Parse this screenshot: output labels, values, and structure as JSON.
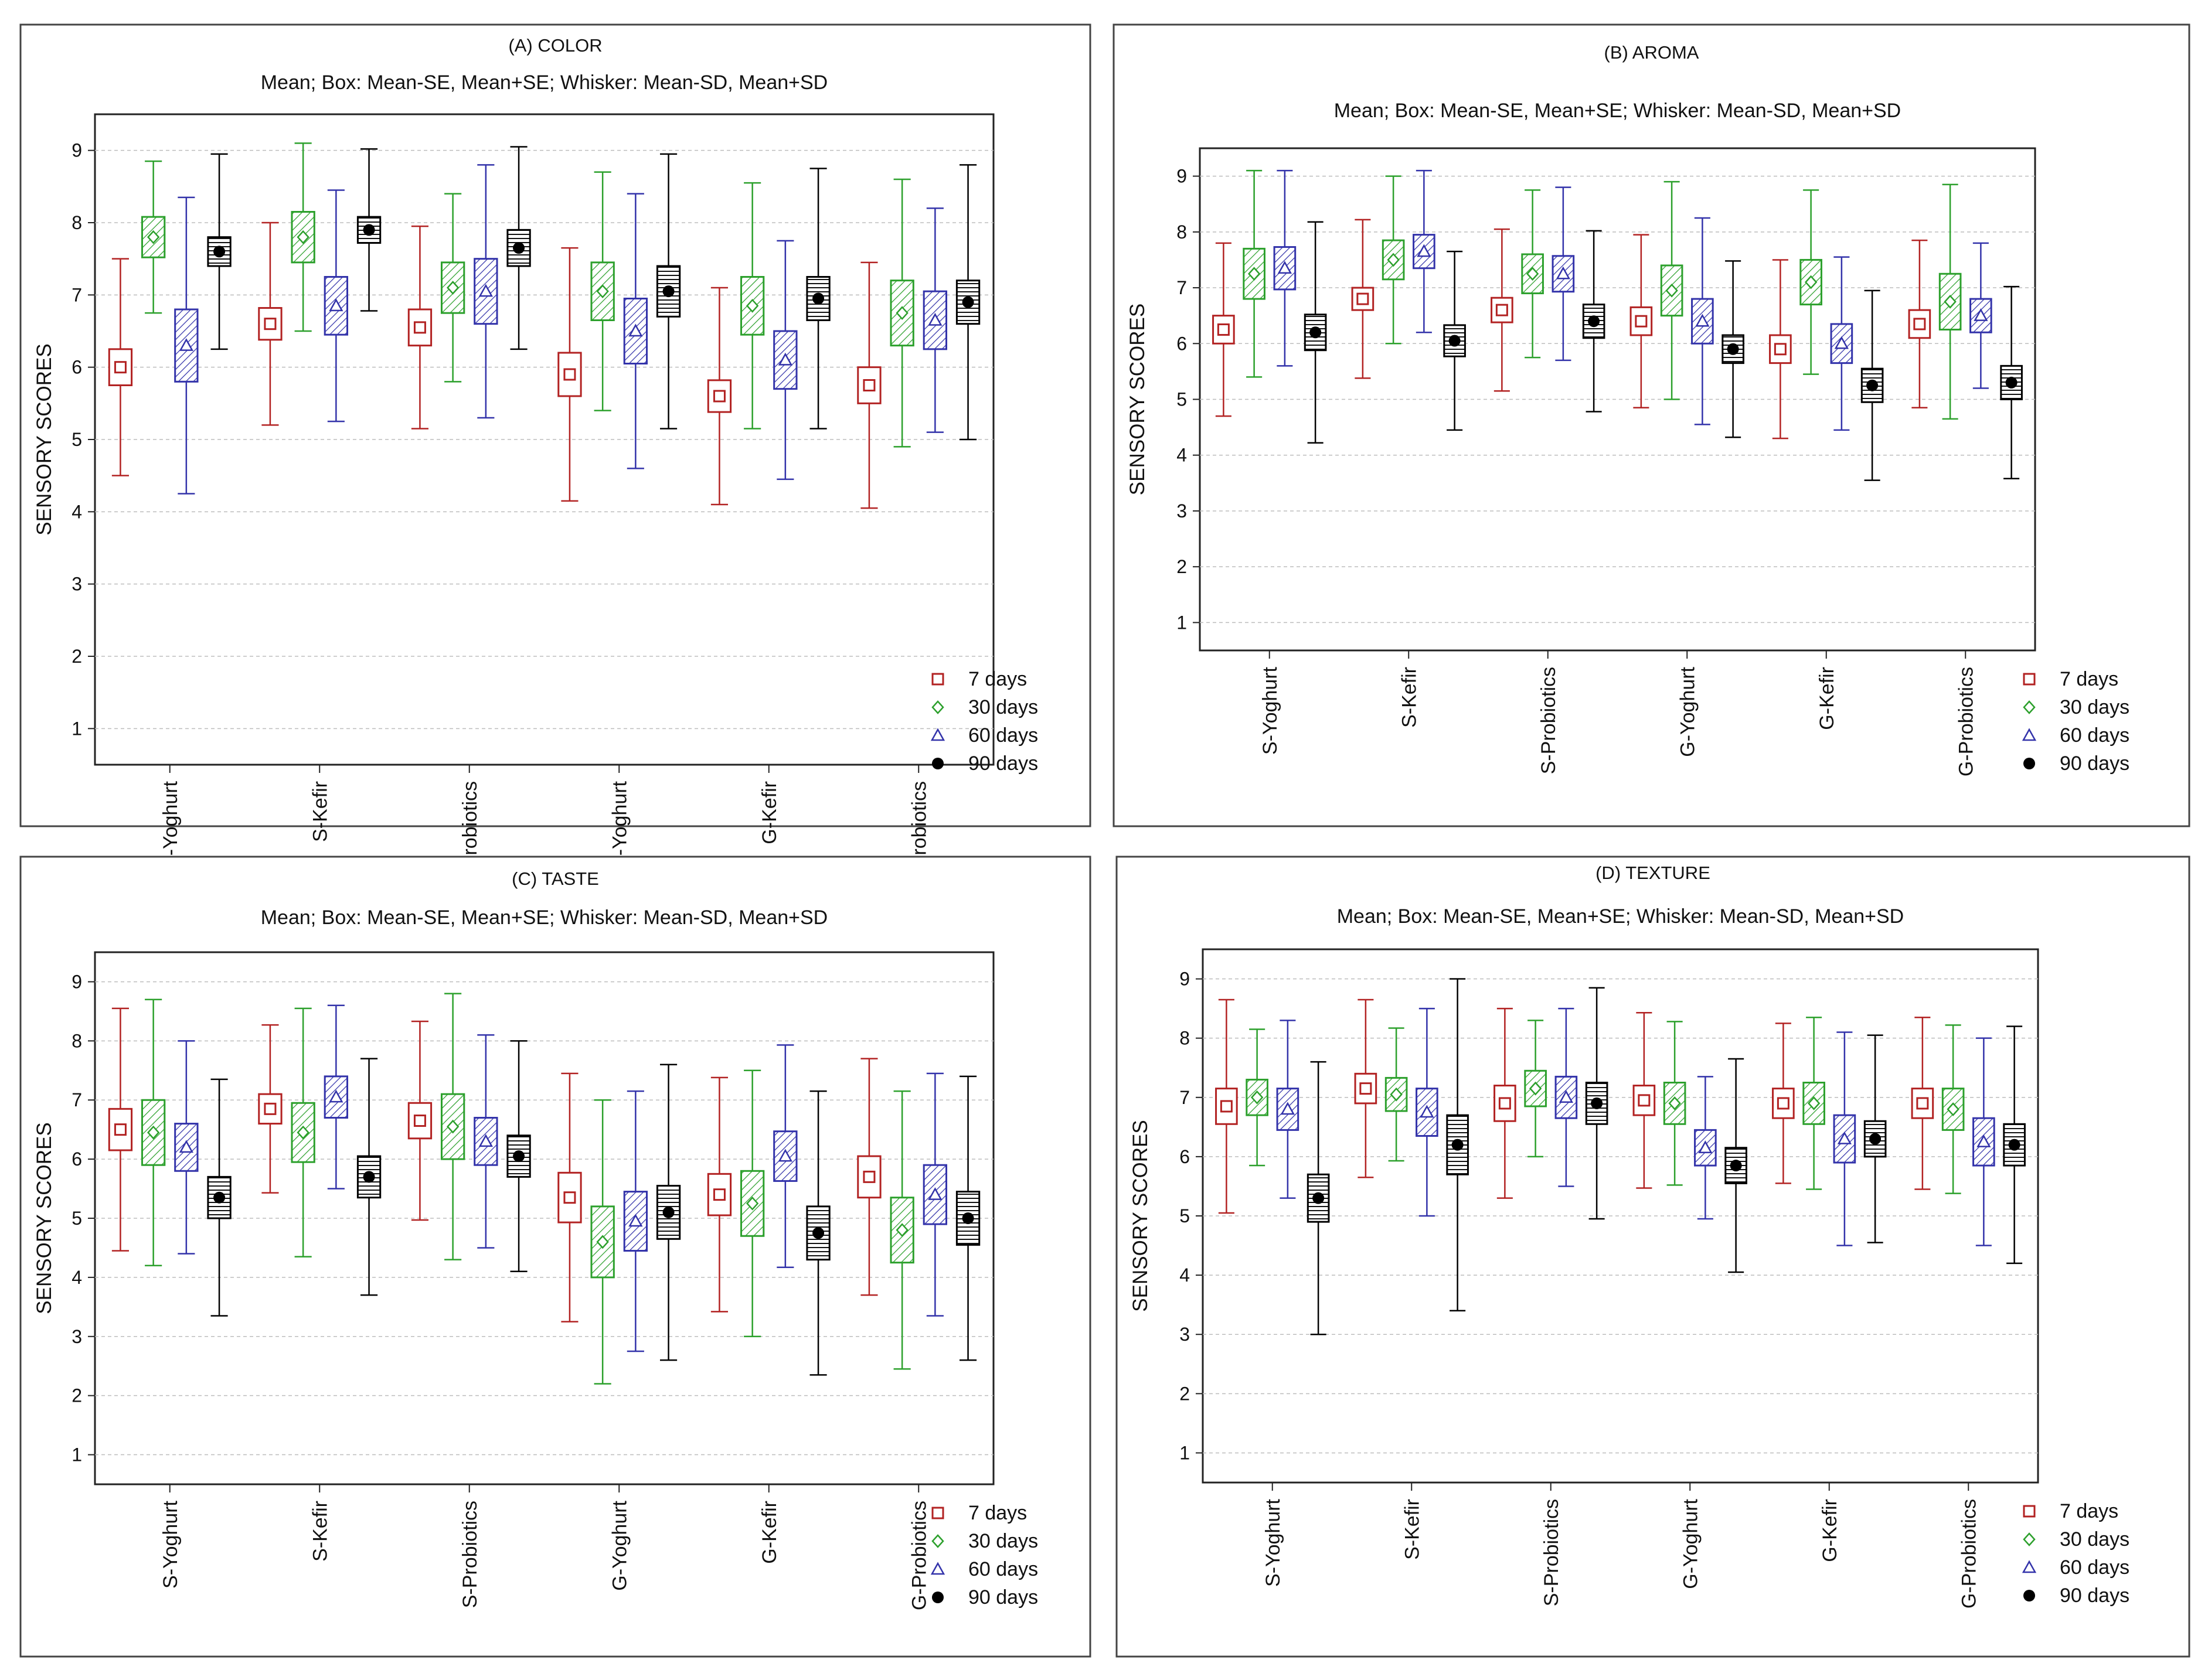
{
  "series_styles": [
    {
      "name": "7 days",
      "color": "#b22222",
      "marker": "square",
      "pattern": "none"
    },
    {
      "name": "30 days",
      "color": "#2ca02c",
      "marker": "diamond",
      "pattern": "diag"
    },
    {
      "name": "60 days",
      "color": "#3333aa",
      "marker": "triangle",
      "pattern": "diag2"
    },
    {
      "name": "90 days",
      "color": "#000000",
      "marker": "circle",
      "pattern": "horiz"
    }
  ],
  "chart_data": [
    {
      "type": "boxplot",
      "title": "(A) COLOR",
      "subtitle": "Mean;  Box: Mean-SE, Mean+SE;  Whisker: Mean-SD, Mean+SD",
      "ylabel": "SENSORY SCORES",
      "ylim": [
        0.5,
        9.5
      ],
      "yticks": [
        1,
        2,
        3,
        4,
        5,
        6,
        7,
        8,
        9
      ],
      "categories": [
        "S-Yoghurt",
        "S-Kefir",
        "S-Probiotics",
        "G-Yoghurt",
        "G-Kefir",
        "G-Probiotics"
      ],
      "series": [
        {
          "name": "7 days",
          "mean": [
            6.0,
            6.6,
            6.55,
            5.9,
            5.6,
            5.75
          ],
          "se": [
            0.25,
            0.22,
            0.25,
            0.3,
            0.22,
            0.25
          ],
          "sd": [
            1.5,
            1.4,
            1.4,
            1.75,
            1.5,
            1.7
          ]
        },
        {
          "name": "30 days",
          "mean": [
            7.8,
            7.8,
            7.1,
            7.05,
            6.85,
            6.75
          ],
          "se": [
            0.28,
            0.35,
            0.35,
            0.4,
            0.4,
            0.45
          ],
          "sd": [
            1.05,
            1.3,
            1.3,
            1.65,
            1.7,
            1.85
          ]
        },
        {
          "name": "60 days",
          "mean": [
            6.3,
            6.85,
            7.05,
            6.5,
            6.1,
            6.65
          ],
          "se": [
            0.5,
            0.4,
            0.45,
            0.45,
            0.4,
            0.4
          ],
          "sd": [
            2.05,
            1.6,
            1.75,
            1.9,
            1.65,
            1.55
          ]
        },
        {
          "name": "90 days",
          "mean": [
            7.6,
            7.9,
            7.65,
            7.05,
            6.95,
            6.9
          ],
          "se": [
            0.2,
            0.18,
            0.25,
            0.35,
            0.3,
            0.3
          ],
          "sd": [
            1.35,
            1.12,
            1.4,
            1.9,
            1.8,
            1.9
          ]
        }
      ],
      "legend": [
        "7 days",
        "30 days",
        "60 days",
        "90 days"
      ]
    },
    {
      "type": "boxplot",
      "title": "(B) AROMA",
      "subtitle": "Mean;  Box: Mean-SE, Mean+SE;  Whisker: Mean-SD, Mean+SD",
      "ylabel": "SENSORY SCORES",
      "ylim": [
        0.5,
        9.5
      ],
      "yticks": [
        1,
        2,
        3,
        4,
        5,
        6,
        7,
        8,
        9
      ],
      "categories": [
        "S-Yoghurt",
        "S-Kefir",
        "S-Probiotics",
        "G-Yoghurt",
        "G-Kefir",
        "G-Probiotics"
      ],
      "series": [
        {
          "name": "7 days",
          "mean": [
            6.25,
            6.8,
            6.6,
            6.4,
            5.9,
            6.35
          ],
          "se": [
            0.25,
            0.2,
            0.22,
            0.25,
            0.25,
            0.25
          ],
          "sd": [
            1.55,
            1.42,
            1.45,
            1.55,
            1.6,
            1.5
          ]
        },
        {
          "name": "30 days",
          "mean": [
            7.25,
            7.5,
            7.25,
            6.95,
            7.1,
            6.75
          ],
          "se": [
            0.45,
            0.35,
            0.35,
            0.45,
            0.4,
            0.5
          ],
          "sd": [
            1.85,
            1.5,
            1.5,
            1.95,
            1.65,
            2.1
          ]
        },
        {
          "name": "60 days",
          "mean": [
            7.35,
            7.65,
            7.25,
            6.4,
            6.0,
            6.5
          ],
          "se": [
            0.38,
            0.3,
            0.32,
            0.4,
            0.35,
            0.3
          ],
          "sd": [
            1.75,
            1.45,
            1.55,
            1.85,
            1.55,
            1.3
          ]
        },
        {
          "name": "90 days",
          "mean": [
            6.2,
            6.05,
            6.4,
            5.9,
            5.25,
            5.3
          ],
          "se": [
            0.32,
            0.28,
            0.3,
            0.25,
            0.3,
            0.3
          ],
          "sd": [
            1.98,
            1.6,
            1.62,
            1.58,
            1.7,
            1.72
          ]
        }
      ],
      "legend": [
        "7 days",
        "30 days",
        "60 days",
        "90 days"
      ]
    },
    {
      "type": "boxplot",
      "title": "(C) TASTE",
      "subtitle": "Mean;  Box: Mean-SE, Mean+SE;  Whisker: Mean-SD, Mean+SD",
      "ylabel": "SENSORY SCORES",
      "ylim": [
        0.5,
        9.5
      ],
      "yticks": [
        1,
        2,
        3,
        4,
        5,
        6,
        7,
        8,
        9
      ],
      "categories": [
        "S-Yoghurt",
        "S-Kefir",
        "S-Probiotics",
        "G-Yoghurt",
        "G-Kefir",
        "G-Probiotics"
      ],
      "series": [
        {
          "name": "7 days",
          "mean": [
            6.5,
            6.85,
            6.65,
            5.35,
            5.4,
            5.7
          ],
          "se": [
            0.35,
            0.25,
            0.3,
            0.42,
            0.35,
            0.35
          ],
          "sd": [
            2.05,
            1.42,
            1.68,
            2.1,
            1.98,
            2.0
          ]
        },
        {
          "name": "30 days",
          "mean": [
            6.45,
            6.45,
            6.55,
            4.6,
            5.25,
            4.8
          ],
          "se": [
            0.55,
            0.5,
            0.55,
            0.6,
            0.55,
            0.55
          ],
          "sd": [
            2.25,
            2.1,
            2.25,
            2.4,
            2.25,
            2.35
          ]
        },
        {
          "name": "60 days",
          "mean": [
            6.2,
            7.05,
            6.3,
            4.95,
            6.05,
            5.4
          ],
          "se": [
            0.4,
            0.35,
            0.4,
            0.5,
            0.42,
            0.5
          ],
          "sd": [
            1.8,
            1.55,
            1.8,
            2.2,
            1.88,
            2.05
          ]
        },
        {
          "name": "90 days",
          "mean": [
            5.35,
            5.7,
            6.05,
            5.1,
            4.75,
            5.0
          ],
          "se": [
            0.35,
            0.35,
            0.35,
            0.45,
            0.45,
            0.45
          ],
          "sd": [
            2.0,
            2.0,
            1.95,
            2.5,
            2.4,
            2.4
          ]
        }
      ],
      "legend": [
        "7 days",
        "30 days",
        "60 days",
        "90 days"
      ]
    },
    {
      "type": "boxplot",
      "title": "(D) TEXTURE",
      "subtitle": "Mean;  Box: Mean-SE, Mean+SE;  Whisker: Mean-SD, Mean+SD",
      "ylabel": "SENSORY SCORES",
      "ylim": [
        0.5,
        9.5
      ],
      "yticks": [
        1,
        2,
        3,
        4,
        5,
        6,
        7,
        8,
        9
      ],
      "categories": [
        "S-Yoghurt",
        "S-Kefir",
        "S-Probiotics",
        "G-Yoghurt",
        "G-Kefir",
        "G-Probiotics"
      ],
      "series": [
        {
          "name": "7 days",
          "mean": [
            6.85,
            7.15,
            6.9,
            6.95,
            6.9,
            6.9
          ],
          "se": [
            0.3,
            0.25,
            0.3,
            0.25,
            0.25,
            0.25
          ],
          "sd": [
            1.8,
            1.5,
            1.6,
            1.48,
            1.35,
            1.45
          ]
        },
        {
          "name": "30 days",
          "mean": [
            7.0,
            7.05,
            7.15,
            6.9,
            6.9,
            6.8
          ],
          "se": [
            0.3,
            0.28,
            0.3,
            0.35,
            0.35,
            0.35
          ],
          "sd": [
            1.15,
            1.12,
            1.15,
            1.38,
            1.45,
            1.42
          ]
        },
        {
          "name": "60 days",
          "mean": [
            6.8,
            6.75,
            7.0,
            6.15,
            6.3,
            6.25
          ],
          "se": [
            0.35,
            0.4,
            0.35,
            0.3,
            0.4,
            0.4
          ],
          "sd": [
            1.5,
            1.75,
            1.5,
            1.2,
            1.8,
            1.75
          ]
        },
        {
          "name": "90 days",
          "mean": [
            5.3,
            6.2,
            6.9,
            5.85,
            6.3,
            6.2
          ],
          "se": [
            0.4,
            0.5,
            0.35,
            0.3,
            0.3,
            0.35
          ],
          "sd": [
            2.3,
            2.8,
            1.95,
            1.8,
            1.75,
            2.0
          ]
        }
      ],
      "legend": [
        "7 days",
        "30 days",
        "60 days",
        "90 days"
      ]
    }
  ]
}
